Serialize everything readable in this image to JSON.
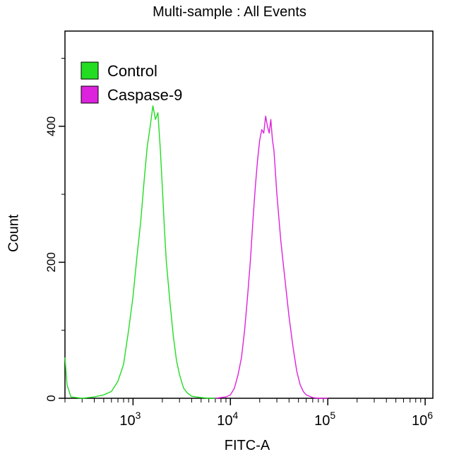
{
  "chart_data": {
    "type": "line",
    "title": "Multi-sample : All Events",
    "xlabel": "FITC-A",
    "ylabel": "Count",
    "x_scale": "log",
    "xlim": [
      200,
      1200000
    ],
    "ylim": [
      0,
      540
    ],
    "x_ticks": [
      {
        "value": 1000,
        "base": "10",
        "exp": "3"
      },
      {
        "value": 10000,
        "base": "10",
        "exp": "4"
      },
      {
        "value": 100000,
        "base": "10",
        "exp": "5"
      },
      {
        "value": 1000000,
        "base": "10",
        "exp": "6"
      }
    ],
    "y_ticks": [
      {
        "value": 0,
        "label": "0"
      },
      {
        "value": 200,
        "label": "200"
      },
      {
        "value": 400,
        "label": "400"
      }
    ],
    "legend_position": "top-left",
    "series": [
      {
        "name": "Control",
        "color": "#22dd22",
        "x": [
          200,
          210,
          230,
          300,
          400,
          500,
          600,
          700,
          800,
          900,
          1000,
          1100,
          1200,
          1300,
          1400,
          1500,
          1600,
          1700,
          1800,
          1900,
          2000,
          2100,
          2200,
          2400,
          2600,
          2800,
          3000,
          3300,
          3600,
          4000,
          4500,
          5000,
          6000,
          7000
        ],
        "y": [
          60,
          20,
          2,
          0,
          2,
          5,
          10,
          25,
          50,
          100,
          150,
          210,
          260,
          320,
          370,
          400,
          430,
          410,
          420,
          370,
          310,
          250,
          200,
          140,
          90,
          55,
          35,
          15,
          8,
          3,
          2,
          1,
          0,
          0
        ]
      },
      {
        "name": "Caspase-9",
        "color": "#dd22dd",
        "x": [
          7000,
          9000,
          10000,
          11000,
          12000,
          13000,
          14000,
          15000,
          16000,
          17000,
          18000,
          19000,
          20000,
          21000,
          22000,
          23000,
          24000,
          25000,
          26000,
          27000,
          28000,
          30000,
          33000,
          36000,
          40000,
          44000,
          48000,
          52000,
          56000,
          60000,
          65000,
          70000,
          80000,
          90000,
          100000
        ],
        "y": [
          0,
          2,
          5,
          15,
          35,
          60,
          100,
          150,
          200,
          260,
          310,
          350,
          380,
          395,
          390,
          415,
          400,
          390,
          410,
          380,
          365,
          300,
          230,
          180,
          120,
          75,
          40,
          20,
          10,
          5,
          3,
          1,
          0,
          0,
          0
        ]
      }
    ]
  }
}
